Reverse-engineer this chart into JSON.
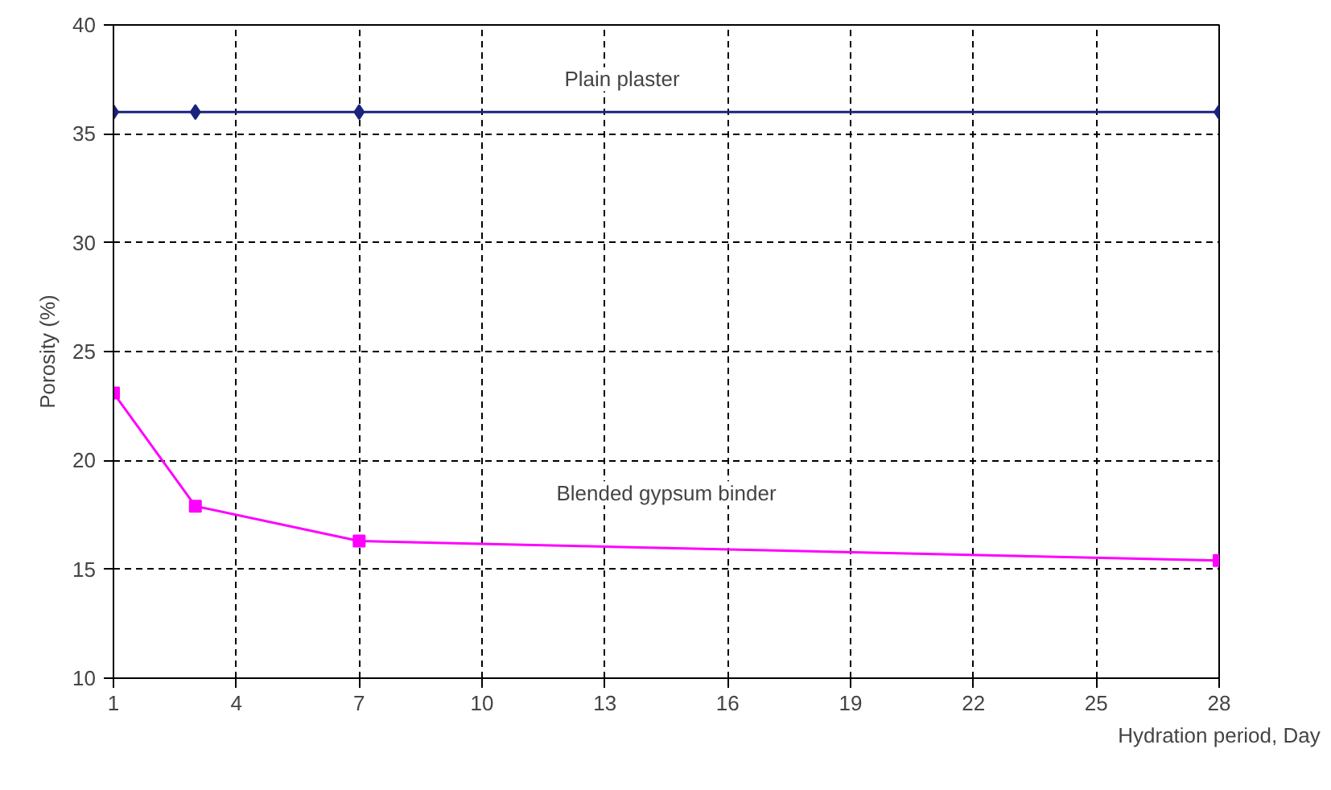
{
  "chart_data": {
    "type": "line",
    "xlabel": "Hydration period, Day",
    "ylabel": "Porosity (%)",
    "x": [
      1,
      3,
      7,
      28
    ],
    "series": [
      {
        "color": "#1a237e",
        "values": [
          36.0,
          36.0,
          36.0,
          36.0
        ],
        "marker": "diamond"
      },
      {
        "color": "#ff00ff",
        "values": [
          23.1,
          17.9,
          16.3,
          15.4
        ],
        "marker": "square"
      }
    ],
    "xlim": [
      1,
      28
    ],
    "xticks": [
      1,
      4,
      7,
      10,
      13,
      16,
      19,
      22,
      25,
      28
    ],
    "ylim": [
      10,
      40
    ],
    "yticks": [
      10,
      15,
      20,
      25,
      30,
      35,
      40
    ],
    "grid": true,
    "line_style": "solid",
    "annotations": [
      "Plain plaster",
      "Blended gypsum binder"
    ]
  }
}
